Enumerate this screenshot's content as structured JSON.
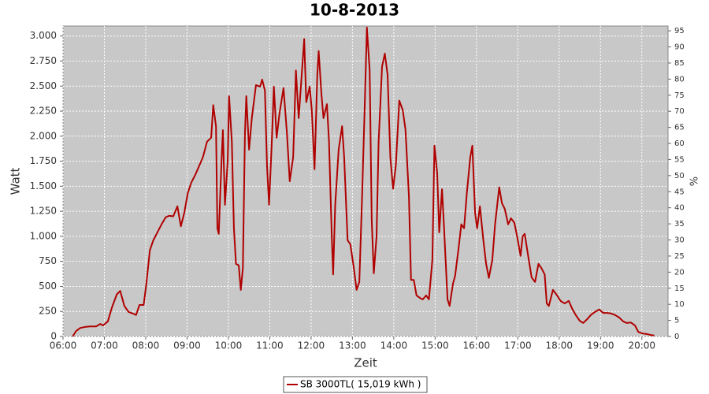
{
  "chart_data": {
    "type": "line",
    "title": "10-8-2013",
    "x_label": "Zeit",
    "y_label": "Watt",
    "y2_label": "%",
    "xlim": [
      "06:00",
      "20:38"
    ],
    "xticks": [
      "06:00",
      "07:00",
      "08:00",
      "09:00",
      "10:00",
      "11:00",
      "12:00",
      "13:00",
      "14:00",
      "15:00",
      "16:00",
      "17:00",
      "18:00",
      "19:00",
      "20:00"
    ],
    "ylim": [
      0,
      3100
    ],
    "yticks": [
      0,
      250,
      {
        "value": 500,
        "label": "500"
      },
      750,
      {
        "value": 1000,
        "label": "1.000"
      },
      {
        "value": 1250,
        "label": "1.250"
      },
      {
        "value": 1500,
        "label": "1.500"
      },
      {
        "value": 1750,
        "label": "1.750"
      },
      {
        "value": 2000,
        "label": "2.000"
      },
      {
        "value": 2250,
        "label": "2.250"
      },
      {
        "value": 2500,
        "label": "2.500"
      },
      {
        "value": 2750,
        "label": "2.750"
      },
      {
        "value": 3000,
        "label": "3.000"
      }
    ],
    "y2lim": [
      0,
      96.5
    ],
    "y2ticks": [
      0,
      5,
      10,
      15,
      20,
      25,
      30,
      35,
      40,
      45,
      50,
      55,
      60,
      65,
      70,
      75,
      80,
      85,
      90,
      95
    ],
    "grid": true,
    "x": [
      "06:14",
      "06:19",
      "06:25",
      "06:32",
      "06:39",
      "06:48",
      "06:54",
      "06:58",
      "07:05",
      "07:11",
      "07:18",
      "07:23",
      "07:29",
      "07:35",
      "07:41",
      "07:46",
      "07:51",
      "07:57",
      "08:01",
      "08:06",
      "08:11",
      "08:17",
      "08:23",
      "08:29",
      "08:34",
      "08:40",
      "08:46",
      "08:51",
      "08:56",
      "09:01",
      "09:06",
      "09:12",
      "09:18",
      "09:23",
      "09:29",
      "09:35",
      "09:38",
      "09:42",
      "09:44",
      "09:46",
      "09:50",
      "09:52",
      "09:55",
      "09:59",
      "10:01",
      "10:05",
      "10:08",
      "10:11",
      "10:15",
      "10:18",
      "10:21",
      "10:24",
      "10:26",
      "10:30",
      "10:34",
      "10:40",
      "10:46",
      "10:49",
      "10:53",
      "10:56",
      "10:59",
      "11:03",
      "11:06",
      "11:10",
      "11:14",
      "11:20",
      "11:25",
      "11:29",
      "11:34",
      "11:38",
      "11:42",
      "11:46",
      "11:50",
      "11:53",
      "11:58",
      "12:01",
      "12:05",
      "12:09",
      "12:11",
      "12:15",
      "12:18",
      "12:23",
      "12:26",
      "12:30",
      "12:32",
      "12:35",
      "12:40",
      "12:45",
      "12:48",
      "12:53",
      "12:57",
      "13:02",
      "13:06",
      "13:10",
      "13:14",
      "13:18",
      "13:21",
      "13:25",
      "13:28",
      "13:31",
      "13:35",
      "13:38",
      "13:43",
      "13:47",
      "13:51",
      "13:55",
      "13:59",
      "14:03",
      "14:08",
      "14:13",
      "14:17",
      "14:22",
      "14:25",
      "14:29",
      "14:33",
      "14:38",
      "14:42",
      "14:47",
      "14:51",
      "14:56",
      "14:59",
      "15:03",
      "15:06",
      "15:10",
      "15:13",
      "15:18",
      "15:21",
      "15:26",
      "15:29",
      "15:34",
      "15:38",
      "15:42",
      "15:46",
      "15:51",
      "15:54",
      "15:58",
      "16:01",
      "16:05",
      "16:10",
      "16:14",
      "16:18",
      "16:23",
      "16:27",
      "16:33",
      "16:37",
      "16:41",
      "16:46",
      "16:50",
      "16:55",
      "16:59",
      "17:04",
      "17:07",
      "17:10",
      "17:15",
      "17:20",
      "17:25",
      "17:30",
      "17:34",
      "17:39",
      "17:42",
      "17:45",
      "17:51",
      "17:57",
      "18:02",
      "18:08",
      "18:14",
      "18:19",
      "18:24",
      "18:30",
      "18:35",
      "18:41",
      "18:46",
      "18:52",
      "18:58",
      "19:04",
      "19:10",
      "19:15",
      "19:21",
      "19:27",
      "19:33",
      "19:38",
      "19:44",
      "19:50",
      "19:55",
      "20:01",
      "20:07",
      "20:13",
      "20:18"
    ],
    "series": [
      {
        "name": "SB 3000TL( 15,019 kWh )",
        "color": "#b00000",
        "values": [
          0,
          55,
          85,
          95,
          100,
          100,
          125,
          110,
          150,
          290,
          420,
          455,
          305,
          245,
          230,
          215,
          315,
          315,
          530,
          860,
          960,
          1040,
          1120,
          1190,
          1205,
          1200,
          1300,
          1100,
          1235,
          1430,
          1535,
          1615,
          1710,
          1790,
          1945,
          1985,
          2310,
          2100,
          1080,
          1025,
          1750,
          2060,
          1315,
          1750,
          2400,
          1945,
          1080,
          725,
          710,
          465,
          685,
          2025,
          2400,
          1865,
          2180,
          2510,
          2495,
          2565,
          2455,
          1710,
          1315,
          1945,
          2495,
          1985,
          2220,
          2480,
          2025,
          1550,
          1790,
          2655,
          2180,
          2575,
          2970,
          2340,
          2495,
          2260,
          1670,
          2615,
          2850,
          2420,
          2180,
          2320,
          1945,
          1000,
          620,
          1315,
          1865,
          2100,
          1790,
          960,
          920,
          685,
          465,
          545,
          1395,
          2340,
          3085,
          2655,
          1160,
          630,
          1000,
          1945,
          2695,
          2825,
          2615,
          1790,
          1475,
          1710,
          2355,
          2260,
          2065,
          1395,
          565,
          565,
          410,
          385,
          370,
          410,
          370,
          765,
          1905,
          1630,
          1040,
          1470,
          1080,
          370,
          305,
          530,
          605,
          880,
          1120,
          1080,
          1430,
          1790,
          1905,
          1235,
          1080,
          1300,
          960,
          725,
          585,
          765,
          1120,
          1490,
          1330,
          1275,
          1120,
          1180,
          1135,
          1000,
          805,
          1000,
          1025,
          805,
          590,
          545,
          725,
          685,
          620,
          330,
          305,
          465,
          410,
          355,
          330,
          355,
          275,
          215,
          155,
          135,
          175,
          215,
          245,
          270,
          235,
          235,
          230,
          215,
          190,
          150,
          135,
          140,
          110,
          45,
          30,
          25,
          15,
          10
        ]
      }
    ]
  }
}
